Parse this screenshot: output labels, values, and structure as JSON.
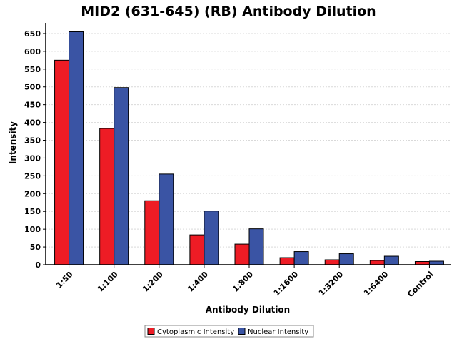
{
  "chart_data": {
    "type": "bar",
    "title": "MID2 (631-645) (RB) Antibody Dilution",
    "xlabel": "Antibody Dilution",
    "ylabel": "Intensity",
    "ylim": [
      0,
      680
    ],
    "yticks": [
      0,
      50,
      100,
      150,
      200,
      250,
      300,
      350,
      400,
      450,
      500,
      550,
      600,
      650
    ],
    "categories": [
      "1:50",
      "1:100",
      "1:200",
      "1:400",
      "1:800",
      "1:1600",
      "1:3200",
      "1:6400",
      "Control"
    ],
    "series": [
      {
        "name": "Cytoplasmic Intensity",
        "color": "#ee1c25",
        "values": [
          575,
          383,
          180,
          84,
          58,
          20,
          14,
          12,
          9
        ]
      },
      {
        "name": "Nuclear Intensity",
        "color": "#3a54a4",
        "values": [
          655,
          498,
          255,
          151,
          101,
          37,
          31,
          24,
          10
        ]
      }
    ],
    "grid": true,
    "legend": "bottom-center"
  }
}
